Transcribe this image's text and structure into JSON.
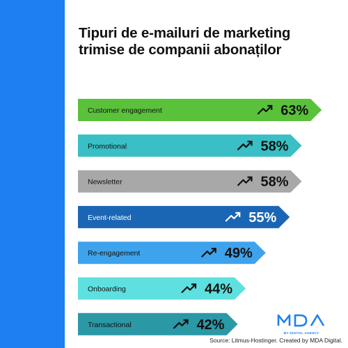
{
  "title": "Tipuri de e-mailuri de marketing trimise de companii abonaților",
  "source": "Source: Litmus-Hostinger. Created by MDA Digital.",
  "logo": {
    "text": "MY DIGITAL AGENCY",
    "icon": "mda-logo"
  },
  "colors": {
    "stripe": "#1d7ff2",
    "bars": [
      "#5ac13a",
      "#39bfc5",
      "#a8a8a8",
      "#1b66b4",
      "#3da3ec",
      "#5ee0e0",
      "#2b98a6"
    ]
  },
  "chart_data": {
    "type": "bar",
    "orientation": "horizontal",
    "categories": [
      "Customer engagement",
      "Promotional",
      "Newsletter",
      "Event-related",
      "Re-engagement",
      "Onboarding",
      "Transactional"
    ],
    "values": [
      63,
      58,
      58,
      55,
      49,
      44,
      42
    ],
    "value_labels": [
      "63%",
      "58%",
      "58%",
      "55%",
      "49%",
      "44%",
      "42%"
    ],
    "trend_icon": "trend-up-icon",
    "xlabel": "",
    "ylabel": ""
  }
}
